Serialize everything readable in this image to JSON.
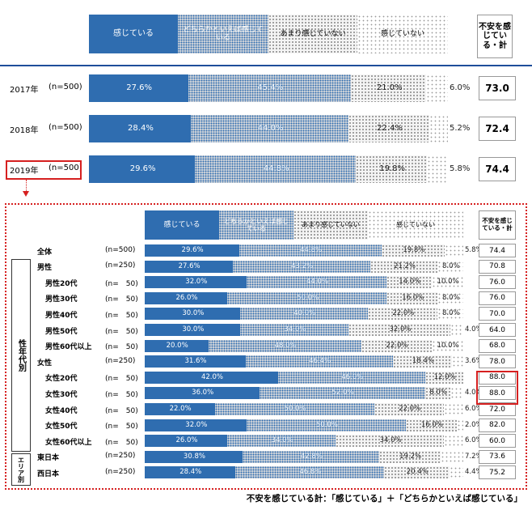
{
  "colors": {
    "dark_blue": "#2f6db0",
    "highlight": "#d62020",
    "rule_blue": "#1f4e9a"
  },
  "legend": {
    "s1": "感じている",
    "s2": "どちらかといえば感じている",
    "s3": "あまり感じていない",
    "s4": "感じていない",
    "total": "不安を感じている・計"
  },
  "footnote": "不安を感じている計：「感じている」＋「どちらかといえば感じている」",
  "top": {
    "rows": [
      {
        "year": "2017年",
        "n": "(n=500)",
        "values": [
          27.6,
          45.4,
          21.0,
          6.0
        ],
        "total": "73.0"
      },
      {
        "year": "2018年",
        "n": "(n=500)",
        "values": [
          28.4,
          44.0,
          22.4,
          5.2
        ],
        "total": "72.4"
      },
      {
        "year": "2019年",
        "n": "(n=500)",
        "values": [
          29.6,
          44.8,
          19.8,
          5.8
        ],
        "total": "74.4"
      }
    ]
  },
  "detail": {
    "group_labels": {
      "gender_age": "性年代別",
      "area": "エリア別"
    },
    "rows": [
      {
        "label": "全体",
        "n": "(n=500)",
        "values": [
          29.6,
          44.8,
          19.8,
          5.8
        ],
        "total": "74.4"
      },
      {
        "label": "男性",
        "n": "(n=250)",
        "values": [
          27.6,
          43.2,
          21.2,
          8.0
        ],
        "total": "70.8"
      },
      {
        "label": "男性20代",
        "n": "(n=　50)",
        "values": [
          32.0,
          44.0,
          14.0,
          10.0
        ],
        "total": "76.0"
      },
      {
        "label": "男性30代",
        "n": "(n=　50)",
        "values": [
          26.0,
          50.0,
          16.0,
          8.0
        ],
        "total": "76.0"
      },
      {
        "label": "男性40代",
        "n": "(n=　50)",
        "values": [
          30.0,
          40.0,
          22.0,
          8.0
        ],
        "total": "70.0"
      },
      {
        "label": "男性50代",
        "n": "(n=　50)",
        "values": [
          30.0,
          34.0,
          32.0,
          4.0
        ],
        "total": "64.0"
      },
      {
        "label": "男性60代以上",
        "n": "(n=　50)",
        "values": [
          20.0,
          48.0,
          22.0,
          10.0
        ],
        "total": "68.0"
      },
      {
        "label": "女性",
        "n": "(n=250)",
        "values": [
          31.6,
          46.4,
          18.4,
          3.6
        ],
        "total": "78.0"
      },
      {
        "label": "女性20代",
        "n": "(n=　50)",
        "values": [
          42.0,
          46.0,
          12.0,
          0.0
        ],
        "total": "88.0"
      },
      {
        "label": "女性30代",
        "n": "(n=　50)",
        "values": [
          36.0,
          52.0,
          8.0,
          4.0
        ],
        "total": "88.0"
      },
      {
        "label": "女性40代",
        "n": "(n=　50)",
        "values": [
          22.0,
          50.0,
          22.0,
          6.0
        ],
        "total": "72.0"
      },
      {
        "label": "女性50代",
        "n": "(n=　50)",
        "values": [
          32.0,
          50.0,
          16.0,
          2.0
        ],
        "total": "82.0"
      },
      {
        "label": "女性60代以上",
        "n": "(n=　50)",
        "values": [
          26.0,
          34.0,
          34.0,
          6.0
        ],
        "total": "60.0"
      },
      {
        "label": "東日本",
        "n": "(n=250)",
        "values": [
          30.8,
          42.8,
          19.2,
          7.2
        ],
        "total": "73.6"
      },
      {
        "label": "西日本",
        "n": "(n=250)",
        "values": [
          28.4,
          46.8,
          20.4,
          4.4
        ],
        "total": "75.2"
      }
    ]
  },
  "chart_data": {
    "type": "bar",
    "stacked": true,
    "orientation": "horizontal",
    "xlim": [
      0,
      100
    ],
    "series": [
      {
        "name": "感じている"
      },
      {
        "name": "どちらかといえば感じている"
      },
      {
        "name": "あまり感じていない"
      },
      {
        "name": "感じていない"
      }
    ]
  }
}
